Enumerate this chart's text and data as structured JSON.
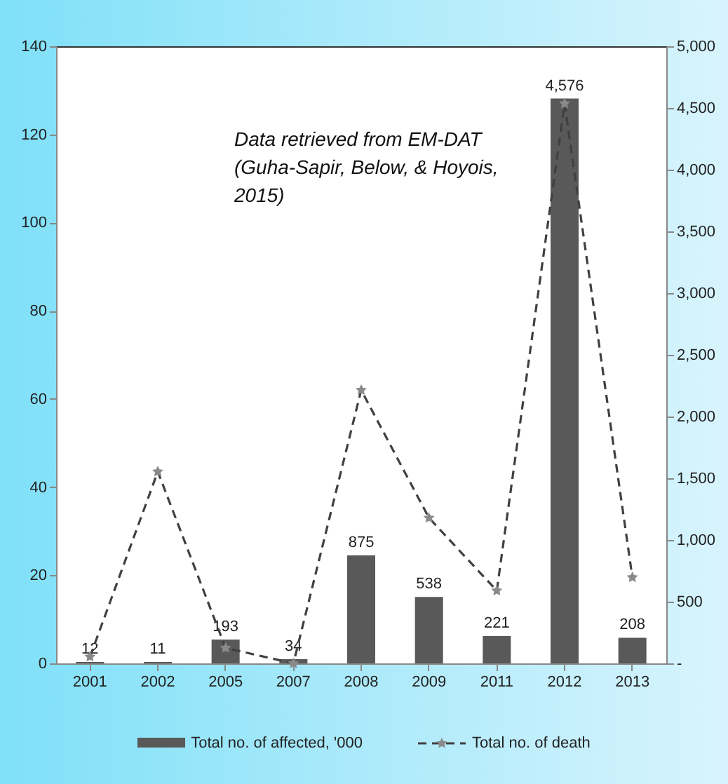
{
  "chart_data": {
    "type": "bar",
    "categories": [
      "2001",
      "2002",
      "2005",
      "2007",
      "2008",
      "2009",
      "2011",
      "2012",
      "2013"
    ],
    "series": [
      {
        "name": "Total no. of affected, '000",
        "axis": "y2",
        "color": "#595959",
        "values": [
          12,
          11,
          193,
          34,
          875,
          538,
          221,
          4576,
          208
        ],
        "value_labels": [
          "12",
          "11",
          "193",
          "34",
          "875",
          "538",
          "221",
          "4,576",
          "208"
        ]
      },
      {
        "name": "Total no. of death",
        "type": "line",
        "color": "#404040",
        "line_style": "dashed",
        "marker": "star",
        "values": [
          1.5,
          43.5,
          3.5,
          0,
          62,
          33,
          16.5,
          127,
          19.5
        ]
      }
    ],
    "ylim": [
      0,
      140
    ],
    "yticks": [
      0,
      20,
      40,
      60,
      80,
      100,
      120,
      140
    ],
    "y2lim": [
      0,
      5000
    ],
    "y2ticks": [
      {
        "value": 0,
        "label": "-"
      },
      {
        "value": 500,
        "label": "500"
      },
      {
        "value": 1000,
        "label": "1,000"
      },
      {
        "value": 1500,
        "label": "1,500"
      },
      {
        "value": 2000,
        "label": "2,000"
      },
      {
        "value": 2500,
        "label": "2,500"
      },
      {
        "value": 3000,
        "label": "3,000"
      },
      {
        "value": 3500,
        "label": "3,500"
      },
      {
        "value": 4000,
        "label": "4,000"
      },
      {
        "value": 4500,
        "label": "4,500"
      },
      {
        "value": 5000,
        "label": "5,000"
      }
    ],
    "annotations": [
      "Data retrieved from EM-DAT (Guha-Sapir, Below, & Hoyois, 2015)"
    ],
    "legend": "bottom",
    "grid": false
  }
}
